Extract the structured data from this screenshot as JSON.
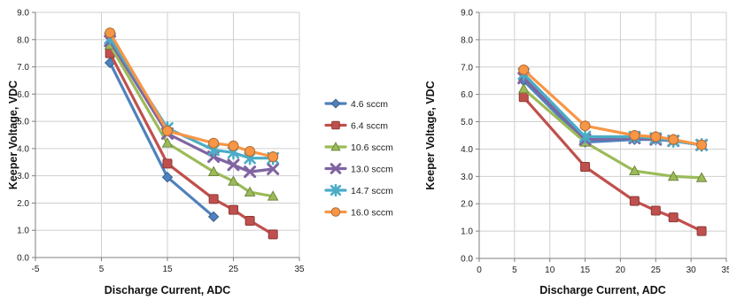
{
  "chart_data": [
    {
      "type": "line",
      "xlabel": "Discharge Current, ADC",
      "ylabel": "Keeper Voltage, VDC",
      "xlim": [
        -5,
        35
      ],
      "ylim": [
        0,
        9
      ],
      "xticks": [
        "-5",
        "5",
        "15",
        "25",
        "35"
      ],
      "yticks": [
        "0.0",
        "1.0",
        "2.0",
        "3.0",
        "4.0",
        "5.0",
        "6.0",
        "7.0",
        "8.0",
        "9.0"
      ],
      "grid": true,
      "legend_position": "right",
      "series": [
        {
          "name": "4.6 sccm",
          "color": "#4f81bd",
          "marker": "diamond",
          "x": [
            6.3,
            15,
            22
          ],
          "y": [
            7.15,
            2.95,
            1.5
          ]
        },
        {
          "name": "6.4 sccm",
          "color": "#c0504d",
          "marker": "square",
          "x": [
            6.3,
            15,
            22,
            25,
            27.5,
            31
          ],
          "y": [
            7.5,
            3.45,
            2.15,
            1.75,
            1.35,
            0.85
          ]
        },
        {
          "name": "10.6 sccm",
          "color": "#9bbb59",
          "marker": "triangle",
          "x": [
            6.3,
            15,
            22,
            25,
            27.5,
            31
          ],
          "y": [
            7.8,
            4.2,
            3.15,
            2.8,
            2.4,
            2.25
          ]
        },
        {
          "name": "13.0 sccm",
          "color": "#8064a2",
          "marker": "x",
          "x": [
            6.3,
            15,
            22,
            25,
            27.5,
            31
          ],
          "y": [
            7.95,
            4.55,
            3.7,
            3.4,
            3.15,
            3.25
          ]
        },
        {
          "name": "14.7 sccm",
          "color": "#4bacc6",
          "marker": "star",
          "x": [
            6.3,
            15,
            22,
            25,
            27.5,
            31
          ],
          "y": [
            8.05,
            4.75,
            3.95,
            3.85,
            3.65,
            3.65
          ]
        },
        {
          "name": "16.0 sccm",
          "color": "#f79646",
          "marker": "circle",
          "x": [
            6.3,
            15,
            22,
            25,
            27.5,
            31
          ],
          "y": [
            8.25,
            4.65,
            4.2,
            4.1,
            3.9,
            3.7
          ]
        }
      ]
    },
    {
      "type": "line",
      "xlabel": "Discharge Current, ADC",
      "ylabel": "Keeper Voltage, VDC",
      "xlim": [
        0,
        35
      ],
      "ylim": [
        0,
        9
      ],
      "xticks": [
        "0",
        "5",
        "10",
        "15",
        "20",
        "25",
        "30",
        "35"
      ],
      "yticks": [
        "0.0",
        "1.0",
        "2.0",
        "3.0",
        "4.0",
        "5.0",
        "6.0",
        "7.0",
        "8.0",
        "9.0"
      ],
      "grid": true,
      "series": [
        {
          "color": "#4f81bd",
          "marker": "diamond",
          "x": [
            6.3,
            15,
            22,
            25,
            27.5,
            31.5
          ],
          "y": [
            6.5,
            4.25,
            4.35,
            4.35,
            4.3,
            4.15
          ]
        },
        {
          "color": "#c0504d",
          "marker": "square",
          "x": [
            6.3,
            15,
            22,
            25,
            27.5,
            31.5
          ],
          "y": [
            5.9,
            3.35,
            2.1,
            1.75,
            1.5,
            1.0
          ]
        },
        {
          "color": "#9bbb59",
          "marker": "triangle",
          "x": [
            6.3,
            15,
            22,
            27.5,
            31.5
          ],
          "y": [
            6.2,
            4.25,
            3.2,
            3.0,
            2.95
          ]
        },
        {
          "color": "#8064a2",
          "marker": "x",
          "x": [
            6.3,
            15,
            22,
            25,
            27.5,
            31.5
          ],
          "y": [
            6.6,
            4.35,
            4.4,
            4.35,
            4.3,
            4.15
          ]
        },
        {
          "color": "#4bacc6",
          "marker": "star",
          "x": [
            6.3,
            15,
            22,
            25,
            27.5,
            31.5
          ],
          "y": [
            6.75,
            4.45,
            4.45,
            4.4,
            4.3,
            4.15
          ]
        },
        {
          "color": "#f79646",
          "marker": "circle",
          "x": [
            6.3,
            15,
            22,
            25,
            27.5,
            31.5
          ],
          "y": [
            6.9,
            4.85,
            4.5,
            4.45,
            4.35,
            4.15
          ]
        }
      ]
    }
  ]
}
